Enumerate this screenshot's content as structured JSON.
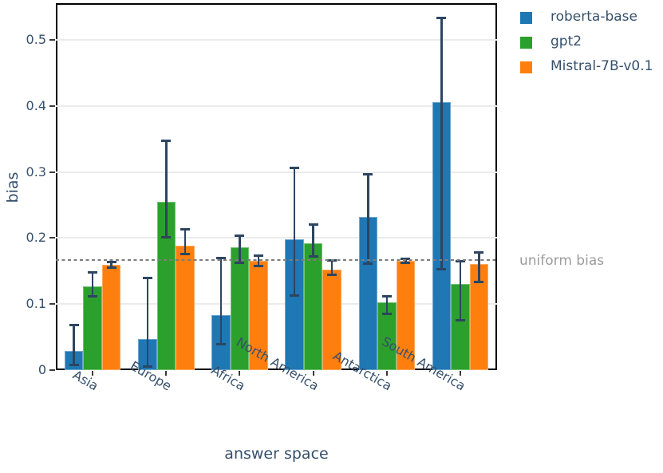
{
  "chart_data": {
    "type": "bar",
    "title": "",
    "xlabel": "answer space",
    "ylabel": "bias",
    "categories": [
      "Asia",
      "Europe",
      "Africa",
      "North America",
      "Antarctica",
      "South America"
    ],
    "series": [
      {
        "name": "roberta-base",
        "color": "#1f77b4",
        "values": [
          0.029,
          0.047,
          0.083,
          0.198,
          0.232,
          0.406
        ],
        "err_low": [
          0.008,
          0.005,
          0.039,
          0.113,
          0.161,
          0.153
        ],
        "err_high": [
          0.068,
          0.139,
          0.17,
          0.306,
          0.296,
          0.533
        ]
      },
      {
        "name": "gpt2",
        "color": "#2ca02c",
        "values": [
          0.127,
          0.255,
          0.186,
          0.192,
          0.103,
          0.13
        ],
        "err_low": [
          0.112,
          0.201,
          0.163,
          0.172,
          0.085,
          0.075
        ],
        "err_high": [
          0.148,
          0.347,
          0.203,
          0.22,
          0.112,
          0.165
        ]
      },
      {
        "name": "Mistral-7B-v0.1",
        "color": "#ff7f0e",
        "values": [
          0.16,
          0.189,
          0.165,
          0.152,
          0.166,
          0.161
        ],
        "err_low": [
          0.155,
          0.176,
          0.158,
          0.144,
          0.163,
          0.134
        ],
        "err_high": [
          0.164,
          0.213,
          0.173,
          0.166,
          0.169,
          0.178
        ]
      }
    ],
    "yticks": [
      0,
      0.1,
      0.2,
      0.3,
      0.4,
      0.5
    ],
    "ytick_labels": [
      "0",
      "0.1",
      "0.2",
      "0.3",
      "0.4",
      "0.5"
    ],
    "ylim": [
      0,
      0.5556
    ],
    "grid": true,
    "legend_position": "top-right-outside",
    "reference_line": {
      "value": 0.1667,
      "label": "uniform bias",
      "color": "#7e7e7e"
    },
    "errorbar_color": "#2d4560"
  }
}
